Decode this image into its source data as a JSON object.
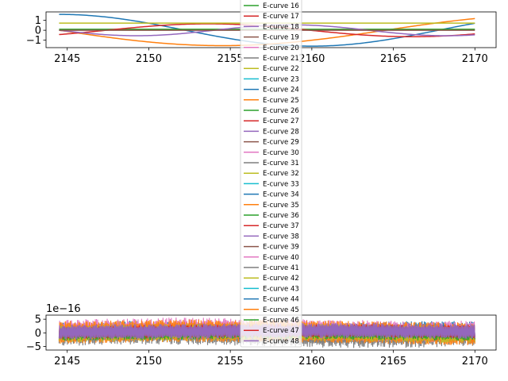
{
  "chart_data": [
    {
      "type": "line",
      "panel": "top",
      "xlim": [
        2143.7,
        2171.3
      ],
      "ylim": [
        -1.75,
        1.85
      ],
      "x_ticks": [
        2145,
        2150,
        2155,
        2160,
        2165,
        2170
      ],
      "x_tick_labels": [
        "2145",
        "2150",
        "2155",
        "2160",
        "2165",
        "2170"
      ],
      "y_ticks": [
        -1,
        0,
        1
      ],
      "y_tick_labels": [
        "−1",
        "0",
        "1"
      ],
      "x_range": [
        2144.5,
        2170.0
      ],
      "series": [
        {
          "name": "E-curve 24",
          "color": "#1f77b4",
          "shape": "cos",
          "amplitude": 1.6,
          "period": 31.0,
          "phase_x": 2144.5
        },
        {
          "name": "E-curve 25",
          "color": "#ff7f0e",
          "shape": "sin",
          "amplitude": -1.55,
          "period": 40.0,
          "phase_x": 2144.5
        },
        {
          "name": "E-curve 16",
          "color": "#2ca02c",
          "shape": "const",
          "value": 0.1
        },
        {
          "name": "E-curve 17",
          "color": "#d62728",
          "shape": "sin",
          "amplitude": 0.65,
          "period": 25.0,
          "phase_x": 2147.4
        },
        {
          "name": "E-curve 18",
          "color": "#9467bd",
          "shape": "sin",
          "amplitude": -0.55,
          "period": 19.0,
          "phase_x": 2144.5
        },
        {
          "name": "E-curve 22",
          "color": "#bcbd22",
          "shape": "const",
          "value": 0.72
        },
        {
          "name": "E-curve 19",
          "color": "#8c564b",
          "shape": "const",
          "value": 0.0
        }
      ]
    },
    {
      "type": "line",
      "panel": "bottom",
      "offset_label": "1e−16",
      "xlim": [
        2143.7,
        2171.3
      ],
      "ylim": [
        -6.3,
        6.5
      ],
      "x_ticks": [
        2145,
        2150,
        2155,
        2160,
        2165,
        2170
      ],
      "x_tick_labels": [
        "2145",
        "2150",
        "2155",
        "2160",
        "2165",
        "2170"
      ],
      "y_ticks": [
        -5,
        0,
        5
      ],
      "y_tick_labels": [
        "−5",
        "0",
        "5"
      ],
      "x_range": [
        2144.5,
        2170.0
      ],
      "noise_bands": [
        {
          "color": "#1f77b4",
          "low": -3.2,
          "high": 3.8
        },
        {
          "color": "#7f7f7f",
          "low": -5.0,
          "high": 2.5
        },
        {
          "color": "#e377c2",
          "low": -2.8,
          "high": 5.0
        },
        {
          "color": "#ff7f0e",
          "low": -4.0,
          "high": 4.3
        },
        {
          "color": "#bcbd22",
          "low": -3.5,
          "high": 2.8
        },
        {
          "color": "#2ca02c",
          "low": -3.0,
          "high": 1.8
        },
        {
          "color": "#d62728",
          "low": -2.2,
          "high": 2.6
        },
        {
          "color": "#9467bd",
          "low": -2.6,
          "high": 3.0
        }
      ]
    }
  ],
  "legend": {
    "placement": "center",
    "entries": [
      {
        "label": "E-curve 16",
        "color": "#2ca02c"
      },
      {
        "label": "E-curve 17",
        "color": "#d62728"
      },
      {
        "label": "E-curve 18",
        "color": "#9467bd"
      },
      {
        "label": "E-curve 19",
        "color": "#8c564b"
      },
      {
        "label": "E-curve 20",
        "color": "#e377c2"
      },
      {
        "label": "E-curve 21",
        "color": "#7f7f7f"
      },
      {
        "label": "E-curve 22",
        "color": "#bcbd22"
      },
      {
        "label": "E-curve 23",
        "color": "#17becf"
      },
      {
        "label": "E-curve 24",
        "color": "#1f77b4"
      },
      {
        "label": "E-curve 25",
        "color": "#ff7f0e"
      },
      {
        "label": "E-curve 26",
        "color": "#2ca02c"
      },
      {
        "label": "E-curve 27",
        "color": "#d62728"
      },
      {
        "label": "E-curve 28",
        "color": "#9467bd"
      },
      {
        "label": "E-curve 29",
        "color": "#8c564b"
      },
      {
        "label": "E-curve 30",
        "color": "#e377c2"
      },
      {
        "label": "E-curve 31",
        "color": "#7f7f7f"
      },
      {
        "label": "E-curve 32",
        "color": "#bcbd22"
      },
      {
        "label": "E-curve 33",
        "color": "#17becf"
      },
      {
        "label": "E-curve 34",
        "color": "#1f77b4"
      },
      {
        "label": "E-curve 35",
        "color": "#ff7f0e"
      },
      {
        "label": "E-curve 36",
        "color": "#2ca02c"
      },
      {
        "label": "E-curve 37",
        "color": "#d62728"
      },
      {
        "label": "E-curve 38",
        "color": "#9467bd"
      },
      {
        "label": "E-curve 39",
        "color": "#8c564b"
      },
      {
        "label": "E-curve 40",
        "color": "#e377c2"
      },
      {
        "label": "E-curve 41",
        "color": "#7f7f7f"
      },
      {
        "label": "E-curve 42",
        "color": "#bcbd22"
      },
      {
        "label": "E-curve 43",
        "color": "#17becf"
      },
      {
        "label": "E-curve 44",
        "color": "#1f77b4"
      },
      {
        "label": "E-curve 45",
        "color": "#ff7f0e"
      },
      {
        "label": "E-curve 46",
        "color": "#2ca02c"
      },
      {
        "label": "E-curve 47",
        "color": "#d62728"
      },
      {
        "label": "E-curve 48",
        "color": "#9467bd"
      }
    ]
  }
}
